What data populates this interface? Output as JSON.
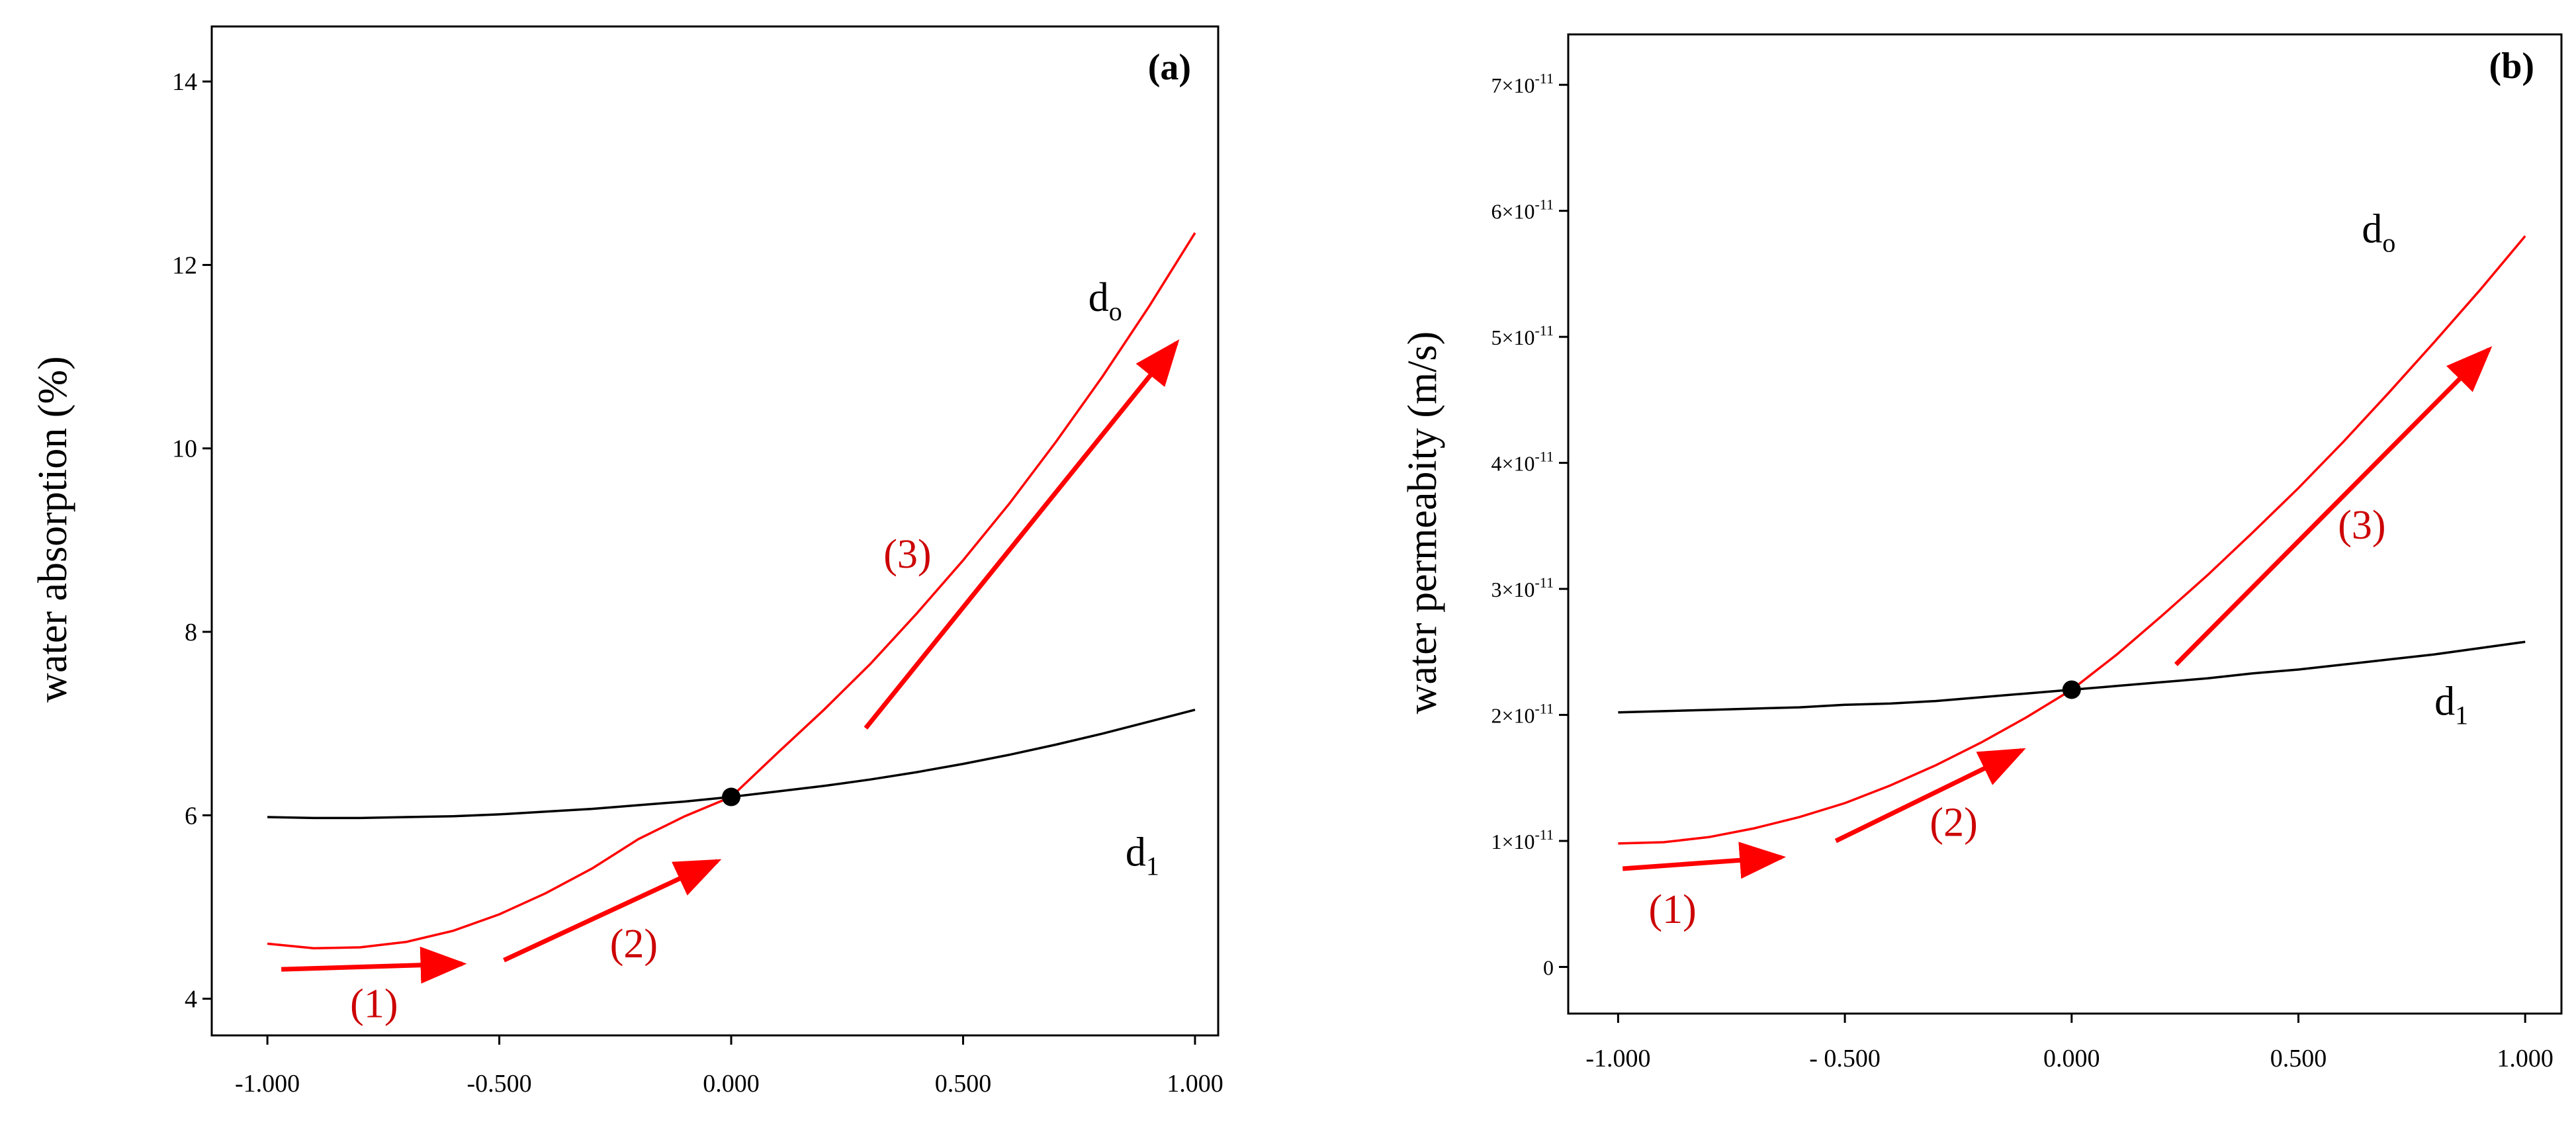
{
  "chart_data": [
    {
      "type": "line",
      "panel_label": "(a)",
      "title": "",
      "xlabel": "",
      "ylabel": "water absorption (%)",
      "xlim": [
        -1.12,
        1.05
      ],
      "ylim": [
        3.6,
        14.6
      ],
      "x_ticks": [
        -1,
        -0.5,
        0,
        0.5,
        1
      ],
      "x_tick_labels": [
        "-1.000",
        "-0.500",
        "0.000",
        "0.500",
        "1.000"
      ],
      "y_ticks": [
        4,
        6,
        8,
        10,
        12,
        14
      ],
      "y_tick_labels": [
        "4",
        "6",
        "8",
        "10",
        "12",
        "14"
      ],
      "series": [
        {
          "name": "do",
          "label_main": "d",
          "label_sub": "o",
          "color": "#ff0000",
          "x": [
            -1.0,
            -0.9,
            -0.8,
            -0.7,
            -0.6,
            -0.5,
            -0.4,
            -0.3,
            -0.2,
            -0.1,
            0.0,
            0.1,
            0.2,
            0.3,
            0.4,
            0.5,
            0.6,
            0.7,
            0.8,
            0.9,
            1.0
          ],
          "values": [
            4.6,
            4.55,
            4.56,
            4.62,
            4.74,
            4.92,
            5.15,
            5.42,
            5.74,
            5.99,
            6.2,
            6.68,
            7.15,
            7.65,
            8.2,
            8.78,
            9.4,
            10.07,
            10.78,
            11.54,
            12.35
          ]
        },
        {
          "name": "d1",
          "label_main": "d",
          "label_sub": "1",
          "color": "#000000",
          "x": [
            -1.0,
            -0.9,
            -0.8,
            -0.7,
            -0.6,
            -0.5,
            -0.4,
            -0.3,
            -0.2,
            -0.1,
            0.0,
            0.1,
            0.2,
            0.3,
            0.4,
            0.5,
            0.6,
            0.7,
            0.8,
            0.9,
            1.0
          ],
          "values": [
            5.98,
            5.97,
            5.97,
            5.98,
            5.99,
            6.01,
            6.04,
            6.07,
            6.11,
            6.15,
            6.2,
            6.26,
            6.32,
            6.39,
            6.47,
            6.56,
            6.66,
            6.77,
            6.89,
            7.02,
            7.15
          ]
        }
      ],
      "center_point": {
        "x": 0.0,
        "y": 6.2
      },
      "label_positions": {
        "do": {
          "x": 0.77,
          "y": 11.5
        },
        "d1": {
          "x": 0.85,
          "y": 5.45
        }
      },
      "annotations": [
        {
          "text": "(1)",
          "color": "#cc0000",
          "x": -0.77,
          "y": 3.8,
          "arrow_from": [
            -0.97,
            4.32
          ],
          "arrow_to": [
            -0.58,
            4.38
          ]
        },
        {
          "text": "(2)",
          "color": "#cc0000",
          "x": -0.21,
          "y": 4.45,
          "arrow_from": [
            -0.49,
            4.42
          ],
          "arrow_to": [
            -0.03,
            5.5
          ]
        },
        {
          "text": "(3)",
          "color": "#cc0000",
          "x": 0.38,
          "y": 8.7,
          "arrow_from": [
            0.29,
            6.95
          ],
          "arrow_to": [
            0.96,
            11.15
          ]
        }
      ]
    },
    {
      "type": "line",
      "panel_label": "(b)",
      "title": "",
      "xlabel": "",
      "ylabel": "water permeabity (m/s)",
      "xlim": [
        -1.11,
        1.08
      ],
      "ylim": [
        -3.7,
        74
      ],
      "y_unit_note": "values in units of 10^-11 m/s",
      "x_ticks": [
        -1,
        -0.5,
        0,
        0.5,
        1
      ],
      "x_tick_labels": [
        "-1.000",
        "- 0.500",
        "0.000",
        "0.500",
        "1.000"
      ],
      "y_ticks": [
        0,
        10,
        20,
        30,
        40,
        50,
        60,
        70
      ],
      "y_tick_labels": [
        {
          "base": "0",
          "exp": ""
        },
        {
          "base": "1×10",
          "exp": "-11"
        },
        {
          "base": "2×10",
          "exp": "-11"
        },
        {
          "base": "3×10",
          "exp": "-11"
        },
        {
          "base": "4×10",
          "exp": "-11"
        },
        {
          "base": "5×10",
          "exp": "-11"
        },
        {
          "base": "6×10",
          "exp": "-11"
        },
        {
          "base": "7×10",
          "exp": "-11"
        }
      ],
      "series": [
        {
          "name": "do",
          "label_main": "d",
          "label_sub": "o",
          "color": "#ff0000",
          "x": [
            -1.0,
            -0.9,
            -0.8,
            -0.7,
            -0.6,
            -0.5,
            -0.4,
            -0.3,
            -0.2,
            -0.1,
            0.0,
            0.1,
            0.2,
            0.3,
            0.4,
            0.5,
            0.6,
            0.7,
            0.8,
            0.9,
            1.0
          ],
          "values": [
            9.8,
            9.9,
            10.3,
            11.0,
            11.9,
            13.0,
            14.4,
            16.0,
            17.8,
            19.8,
            22.0,
            24.8,
            27.9,
            31.1,
            34.5,
            38.0,
            41.7,
            45.6,
            49.6,
            53.7,
            58.0
          ]
        },
        {
          "name": "d1",
          "label_main": "d",
          "label_sub": "1",
          "color": "#000000",
          "x": [
            -1.0,
            -0.9,
            -0.8,
            -0.7,
            -0.6,
            -0.5,
            -0.4,
            -0.3,
            -0.2,
            -0.1,
            0.0,
            0.1,
            0.2,
            0.3,
            0.4,
            0.5,
            0.6,
            0.7,
            0.8,
            0.9,
            1.0
          ],
          "values": [
            20.2,
            20.3,
            20.4,
            20.5,
            20.6,
            20.8,
            20.9,
            21.1,
            21.4,
            21.7,
            22.0,
            22.3,
            22.6,
            22.9,
            23.3,
            23.6,
            24.0,
            24.4,
            24.8,
            25.3,
            25.8
          ]
        }
      ],
      "center_point": {
        "x": 0.0,
        "y": 22.0
      },
      "label_positions": {
        "do": {
          "x": 0.64,
          "y": 57.5
        },
        "d1": {
          "x": 0.8,
          "y": 20.0
        }
      },
      "annotations": [
        {
          "text": "(1)",
          "color": "#cc0000",
          "x": -0.88,
          "y": 3.5,
          "arrow_from": [
            -0.99,
            7.8
          ],
          "arrow_to": [
            -0.64,
            8.7
          ]
        },
        {
          "text": "(2)",
          "color": "#cc0000",
          "x": -0.26,
          "y": 10.4,
          "arrow_from": [
            -0.52,
            10.0
          ],
          "arrow_to": [
            -0.11,
            17.2
          ]
        },
        {
          "text": "(3)",
          "color": "#cc0000",
          "x": 0.64,
          "y": 34.0,
          "arrow_from": [
            0.23,
            24.0
          ],
          "arrow_to": [
            0.92,
            49.0
          ]
        }
      ]
    }
  ]
}
